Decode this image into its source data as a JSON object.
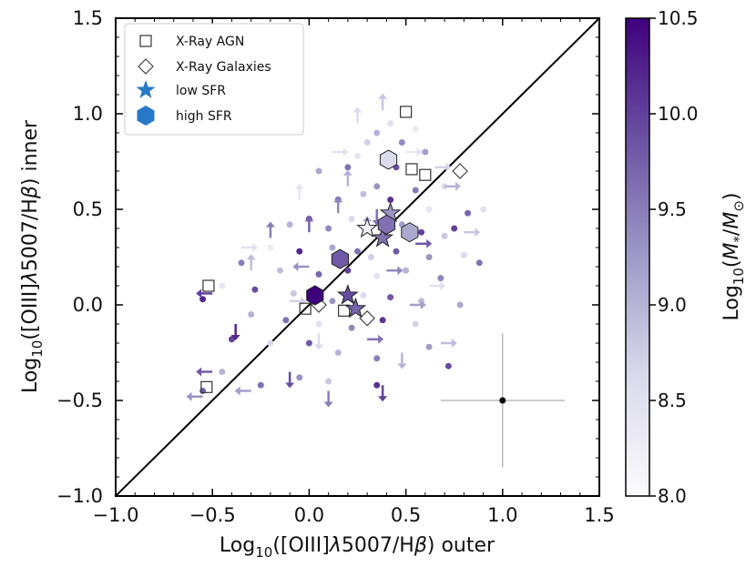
{
  "chart_data": {
    "type": "scatter",
    "xlabel_parts": [
      "Log",
      "10",
      "([OIII]",
      "λ",
      "5007/H",
      "β",
      ") outer"
    ],
    "ylabel_parts": [
      "Log",
      "10",
      "([OIII]",
      "λ",
      "5007/H",
      "β",
      ") inner"
    ],
    "colorbar_label_parts": [
      "Log",
      "10",
      "(",
      "M",
      "*",
      "/",
      "M",
      "⊙",
      ")"
    ],
    "xlim": [
      -1.0,
      1.5
    ],
    "ylim": [
      -1.0,
      1.5
    ],
    "clim": [
      8.0,
      10.5
    ],
    "xticks": [
      "−1.0",
      "−0.5",
      "0.0",
      "0.5",
      "1.0",
      "1.5"
    ],
    "xtick_values": [
      -1.0,
      -0.5,
      0.0,
      0.5,
      1.0,
      1.5
    ],
    "yticks": [
      "−1.0",
      "−0.5",
      "0.0",
      "0.5",
      "1.0",
      "1.5"
    ],
    "ytick_values": [
      -1.0,
      -0.5,
      0.0,
      0.5,
      1.0,
      1.5
    ],
    "colorbar_ticks": [
      "8.0",
      "8.5",
      "9.0",
      "9.5",
      "10.0",
      "10.5"
    ],
    "colorbar_tick_values": [
      8.0,
      8.5,
      9.0,
      9.5,
      10.0,
      10.5
    ],
    "colormap": [
      "#fcfbfd",
      "#dadaeb",
      "#9e9ac8",
      "#6a51a3",
      "#3f007d"
    ],
    "one_to_one_line": true,
    "legend_position": "upper-left",
    "legend": [
      {
        "marker": "square",
        "label": "X-Ray AGN"
      },
      {
        "marker": "diamond",
        "label": "X-Ray Galaxies"
      },
      {
        "marker": "star",
        "label": "low SFR"
      },
      {
        "marker": "hexagon",
        "label": "high SFR"
      }
    ],
    "legend_marker_color": "#2878c8",
    "error_bar": {
      "x": 1.0,
      "y": -0.5,
      "xerr": [
        0.32,
        0.32
      ],
      "yerr": [
        0.35,
        0.35
      ]
    },
    "points": [
      {
        "x": 0.42,
        "y": 0.95,
        "m": 8.5
      },
      {
        "x": 0.35,
        "y": 0.9,
        "m": 9.0
      },
      {
        "x": 0.55,
        "y": 0.92,
        "m": 8.3
      },
      {
        "x": 0.48,
        "y": 0.85,
        "m": 9.4
      },
      {
        "x": 0.3,
        "y": 0.85,
        "m": 8.7
      },
      {
        "x": 0.6,
        "y": 0.8,
        "m": 9.2
      },
      {
        "x": 0.2,
        "y": 0.72,
        "m": 9.6
      },
      {
        "x": 0.05,
        "y": 0.7,
        "m": 9.1
      },
      {
        "x": 0.7,
        "y": 0.62,
        "m": 8.6
      },
      {
        "x": 0.15,
        "y": 0.55,
        "m": 9.8
      },
      {
        "x": 0.28,
        "y": 0.58,
        "m": 8.9
      },
      {
        "x": 0.35,
        "y": 0.62,
        "m": 9.3
      },
      {
        "x": 0.42,
        "y": 0.55,
        "m": 10.1
      },
      {
        "x": 0.55,
        "y": 0.6,
        "m": 9.5
      },
      {
        "x": 0.62,
        "y": 0.5,
        "m": 8.4
      },
      {
        "x": 0.82,
        "y": 0.48,
        "m": 9.7
      },
      {
        "x": 0.9,
        "y": 0.5,
        "m": 8.5
      },
      {
        "x": 0.0,
        "y": 0.45,
        "m": 9.9
      },
      {
        "x": -0.1,
        "y": 0.42,
        "m": 9.0
      },
      {
        "x": 0.1,
        "y": 0.4,
        "m": 9.4
      },
      {
        "x": 0.22,
        "y": 0.45,
        "m": 8.6
      },
      {
        "x": 0.48,
        "y": 0.42,
        "m": 9.2
      },
      {
        "x": 0.58,
        "y": 0.38,
        "m": 10.0
      },
      {
        "x": 0.7,
        "y": 0.36,
        "m": 8.8
      },
      {
        "x": -0.2,
        "y": 0.3,
        "m": 8.3
      },
      {
        "x": -0.05,
        "y": 0.28,
        "m": 10.2
      },
      {
        "x": 0.12,
        "y": 0.3,
        "m": 9.1
      },
      {
        "x": 0.25,
        "y": 0.28,
        "m": 9.6
      },
      {
        "x": 0.32,
        "y": 0.25,
        "m": 8.7
      },
      {
        "x": 0.45,
        "y": 0.28,
        "m": 9.8
      },
      {
        "x": 0.62,
        "y": 0.25,
        "m": 9.3
      },
      {
        "x": 0.8,
        "y": 0.26,
        "m": 8.6
      },
      {
        "x": -0.35,
        "y": 0.22,
        "m": 9.5
      },
      {
        "x": -0.15,
        "y": 0.18,
        "m": 8.9
      },
      {
        "x": 0.05,
        "y": 0.16,
        "m": 9.7
      },
      {
        "x": 0.2,
        "y": 0.18,
        "m": 10.0
      },
      {
        "x": 0.35,
        "y": 0.15,
        "m": 8.5
      },
      {
        "x": 0.5,
        "y": 0.18,
        "m": 9.0
      },
      {
        "x": 0.68,
        "y": 0.14,
        "m": 9.4
      },
      {
        "x": -0.45,
        "y": 0.1,
        "m": 8.4
      },
      {
        "x": -0.28,
        "y": 0.08,
        "m": 9.9
      },
      {
        "x": -0.08,
        "y": 0.06,
        "m": 8.8
      },
      {
        "x": 0.12,
        "y": 0.02,
        "m": 9.3
      },
      {
        "x": 0.28,
        "y": 0.05,
        "m": 8.6
      },
      {
        "x": 0.42,
        "y": 0.04,
        "m": 9.8
      },
      {
        "x": 0.58,
        "y": 0.02,
        "m": 8.9
      },
      {
        "x": 0.78,
        "y": 0.0,
        "m": 9.1
      },
      {
        "x": -0.55,
        "y": 0.03,
        "m": 10.2
      },
      {
        "x": -0.3,
        "y": -0.05,
        "m": 9.0
      },
      {
        "x": -0.12,
        "y": -0.08,
        "m": 9.6
      },
      {
        "x": 0.05,
        "y": -0.1,
        "m": 8.5
      },
      {
        "x": 0.22,
        "y": -0.12,
        "m": 9.4
      },
      {
        "x": 0.38,
        "y": -0.08,
        "m": 10.1
      },
      {
        "x": 0.55,
        "y": -0.1,
        "m": 8.7
      },
      {
        "x": 0.62,
        "y": -0.22,
        "m": 9.2
      },
      {
        "x": -0.4,
        "y": -0.18,
        "m": 10.0
      },
      {
        "x": -0.2,
        "y": -0.2,
        "m": 8.6
      },
      {
        "x": 0.0,
        "y": -0.2,
        "m": 9.8
      },
      {
        "x": 0.15,
        "y": -0.25,
        "m": 9.0
      },
      {
        "x": 0.35,
        "y": -0.28,
        "m": 9.5
      },
      {
        "x": 0.72,
        "y": -0.32,
        "m": 9.9
      },
      {
        "x": -0.05,
        "y": -0.38,
        "m": 9.3
      },
      {
        "x": 0.1,
        "y": -0.4,
        "m": 8.8
      },
      {
        "x": 0.35,
        "y": -0.42,
        "m": 10.1
      },
      {
        "x": -0.25,
        "y": -0.42,
        "m": 9.6
      },
      {
        "x": -0.45,
        "y": -0.35,
        "m": 9.0
      },
      {
        "x": -0.55,
        "y": -0.45,
        "m": 9.7
      },
      {
        "x": 0.45,
        "y": 0.72,
        "m": 9.9
      },
      {
        "x": 0.25,
        "y": 0.78,
        "m": 8.4
      },
      {
        "x": 0.78,
        "y": 0.68,
        "m": 9.3
      },
      {
        "x": 0.88,
        "y": 0.22,
        "m": 9.6
      },
      {
        "x": 0.75,
        "y": 0.4,
        "m": 10.0
      }
    ],
    "arrows": [
      {
        "x": 0.25,
        "y": 0.95,
        "dir": "up",
        "m": 8.6
      },
      {
        "x": 0.38,
        "y": 1.02,
        "dir": "up",
        "m": 8.8
      },
      {
        "x": 0.5,
        "y": 0.8,
        "dir": "right",
        "m": 8.4
      },
      {
        "x": 0.65,
        "y": 0.72,
        "dir": "right",
        "m": 8.7
      },
      {
        "x": 0.7,
        "y": 0.62,
        "dir": "right",
        "m": 9.0
      },
      {
        "x": 0.15,
        "y": 0.48,
        "dir": "up",
        "m": 9.4
      },
      {
        "x": 0.0,
        "y": 0.38,
        "dir": "up",
        "m": 9.7
      },
      {
        "x": -0.2,
        "y": 0.35,
        "dir": "up",
        "m": 9.5
      },
      {
        "x": -0.35,
        "y": 0.3,
        "dir": "right",
        "m": 8.5
      },
      {
        "x": 0.3,
        "y": 0.38,
        "dir": "up",
        "m": 9.1
      },
      {
        "x": 0.55,
        "y": 0.32,
        "dir": "right",
        "m": 9.8
      },
      {
        "x": 0.8,
        "y": 0.38,
        "dir": "right",
        "m": 8.8
      },
      {
        "x": -0.3,
        "y": 0.18,
        "dir": "up",
        "m": 8.9
      },
      {
        "x": 0.0,
        "y": 0.2,
        "dir": "left",
        "m": 9.3
      },
      {
        "x": 0.4,
        "y": 0.18,
        "dir": "right",
        "m": 9.4
      },
      {
        "x": 0.62,
        "y": 0.1,
        "dir": "right",
        "m": 8.5
      },
      {
        "x": -0.5,
        "y": 0.06,
        "dir": "left",
        "m": 10.0
      },
      {
        "x": -0.1,
        "y": 0.02,
        "dir": "right",
        "m": 8.7
      },
      {
        "x": 0.52,
        "y": 0.0,
        "dir": "right",
        "m": 9.2
      },
      {
        "x": -0.38,
        "y": -0.1,
        "dir": "down",
        "m": 10.2
      },
      {
        "x": 0.05,
        "y": -0.15,
        "dir": "down",
        "m": 8.6
      },
      {
        "x": 0.3,
        "y": -0.18,
        "dir": "right",
        "m": 9.6
      },
      {
        "x": 0.48,
        "y": -0.25,
        "dir": "down",
        "m": 9.0
      },
      {
        "x": 0.68,
        "y": -0.2,
        "dir": "right",
        "m": 8.9
      },
      {
        "x": -0.1,
        "y": -0.35,
        "dir": "down",
        "m": 9.9
      },
      {
        "x": 0.1,
        "y": -0.45,
        "dir": "down",
        "m": 9.5
      },
      {
        "x": 0.38,
        "y": -0.42,
        "dir": "down",
        "m": 10.0
      },
      {
        "x": -0.3,
        "y": -0.45,
        "dir": "left",
        "m": 9.2
      },
      {
        "x": -0.5,
        "y": -0.35,
        "dir": "left",
        "m": 9.8
      },
      {
        "x": -0.55,
        "y": -0.48,
        "dir": "left",
        "m": 9.3
      },
      {
        "x": 0.2,
        "y": 0.62,
        "dir": "up",
        "m": 9.0
      },
      {
        "x": 0.12,
        "y": 0.8,
        "dir": "right",
        "m": 8.5
      },
      {
        "x": -0.05,
        "y": 0.55,
        "dir": "up",
        "m": 8.4
      },
      {
        "x": 0.35,
        "y": 0.5,
        "dir": "down",
        "m": 9.6
      }
    ],
    "agn_squares": [
      {
        "x": 0.5,
        "y": 1.01
      },
      {
        "x": 0.53,
        "y": 0.71
      },
      {
        "x": 0.6,
        "y": 0.68
      },
      {
        "x": -0.52,
        "y": 0.1
      },
      {
        "x": -0.02,
        "y": -0.02
      },
      {
        "x": 0.18,
        "y": -0.03
      },
      {
        "x": -0.53,
        "y": -0.43
      }
    ],
    "galaxy_diamonds": [
      {
        "x": 0.05,
        "y": 0.0
      },
      {
        "x": 0.3,
        "y": -0.07
      },
      {
        "x": 0.78,
        "y": 0.7
      }
    ],
    "low_sfr_stars": [
      {
        "x": 0.3,
        "y": 0.4,
        "m": 8.2
      },
      {
        "x": 0.38,
        "y": 0.35,
        "m": 9.6
      },
      {
        "x": 0.42,
        "y": 0.48,
        "m": 9.3
      },
      {
        "x": 0.2,
        "y": 0.05,
        "m": 9.9
      },
      {
        "x": 0.24,
        "y": -0.02,
        "m": 9.7
      }
    ],
    "high_sfr_hexagons": [
      {
        "x": 0.41,
        "y": 0.76,
        "m": 8.6
      },
      {
        "x": 0.4,
        "y": 0.42,
        "m": 9.6
      },
      {
        "x": 0.52,
        "y": 0.38,
        "m": 9.1
      },
      {
        "x": 0.16,
        "y": 0.24,
        "m": 9.8
      },
      {
        "x": 0.03,
        "y": 0.05,
        "m": 10.5
      }
    ]
  }
}
